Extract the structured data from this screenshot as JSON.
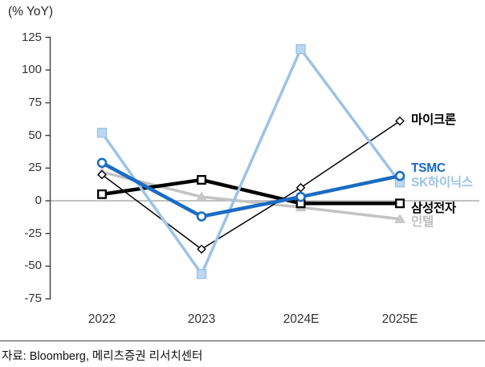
{
  "chart_data": {
    "type": "line",
    "unit_label": "(% YoY)",
    "categories": [
      "2022",
      "2023",
      "2024E",
      "2025E"
    ],
    "y_ticks": [
      125,
      100,
      75,
      50,
      25,
      0,
      -25,
      -50,
      -75
    ],
    "ylim": [
      -75,
      125
    ],
    "grid": "zero-line-only",
    "legend_position": "right-of-lines",
    "zero_line_color": "#ADADAD",
    "axis_color": "#3F3F3F",
    "series": [
      {
        "name": "마이크론",
        "color": "#000000",
        "marker": "diamond",
        "line_width": 1.5,
        "marker_fill": "#FFFFFF",
        "values": [
          20,
          -37,
          10,
          61
        ]
      },
      {
        "name": "TSMC",
        "color": "#1B6CC2",
        "marker": "circle",
        "line_width": 4.5,
        "marker_fill": "#FFFFFF",
        "values": [
          29,
          -12,
          3,
          19
        ]
      },
      {
        "name": "SK하이닉스",
        "color": "#9DC3E6",
        "marker": "square",
        "line_width": 3.5,
        "marker_fill": "#BDD7EE",
        "values": [
          52,
          -56,
          116,
          14
        ]
      },
      {
        "name": "삼성전자",
        "color": "#000000",
        "marker": "square",
        "line_width": 4.5,
        "marker_fill": "#FFFFFF",
        "values": [
          5,
          16,
          -2,
          -2
        ]
      },
      {
        "name": "인텔",
        "color": "#C3C3C3",
        "marker": "triangle",
        "line_width": 3.5,
        "marker_fill": "#C9C9C9",
        "values": [
          22,
          3,
          -5,
          -14
        ]
      }
    ]
  },
  "source": {
    "text": "자료: Bloomberg,  메리츠증권 리서치센터"
  }
}
